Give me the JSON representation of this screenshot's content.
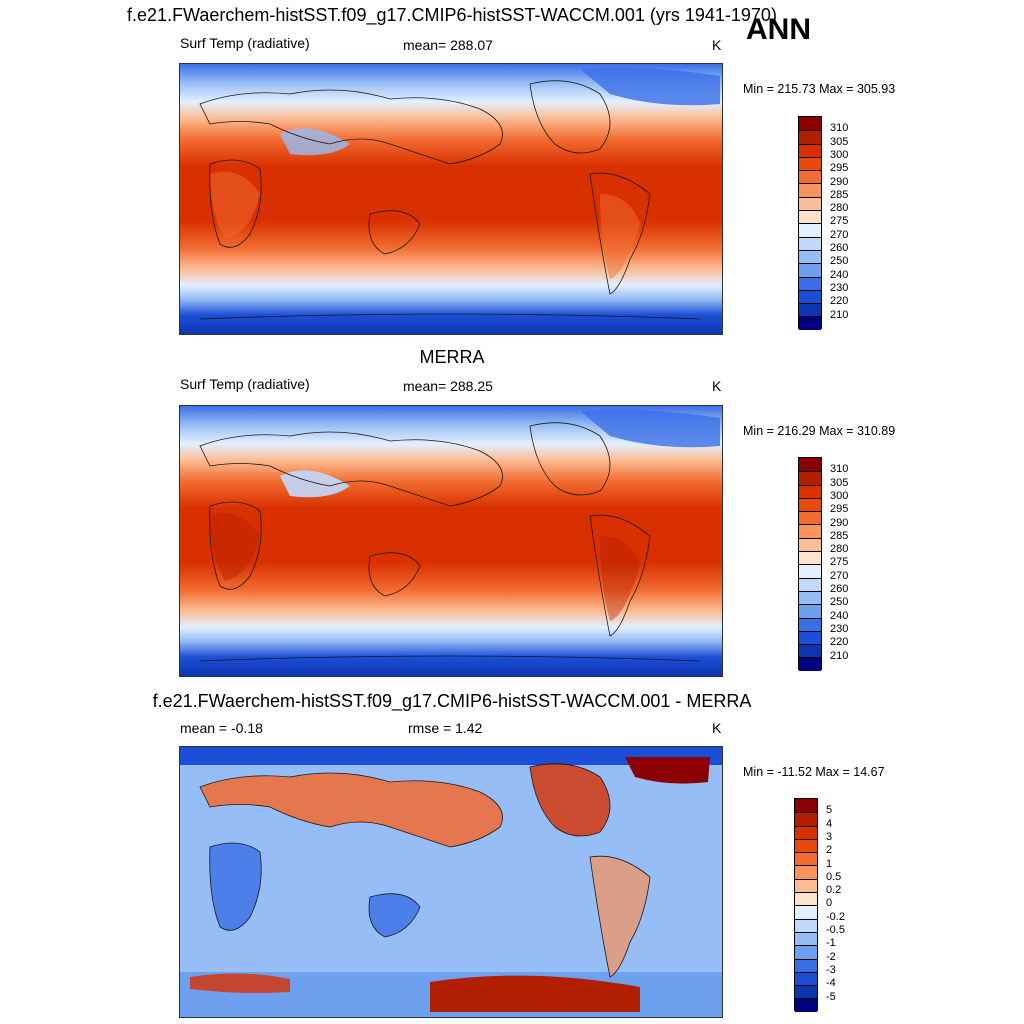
{
  "season": "ANN",
  "panels": [
    {
      "title": "f.e21.FWaerchem-histSST.f09_g17.CMIP6-histSST-WACCM.001 (yrs 1941-1970)",
      "left_label": "Surf Temp (radiative)",
      "center_label": "mean= 288.07",
      "units": "K",
      "minmax": "Min = 215.73 Max = 305.93",
      "colorbar": {
        "labels": [
          "310",
          "305",
          "300",
          "295",
          "290",
          "285",
          "280",
          "275",
          "270",
          "260",
          "250",
          "240",
          "230",
          "220",
          "210"
        ],
        "colors": [
          "#8b0000",
          "#b11e00",
          "#d93000",
          "#e84a0e",
          "#f26b30",
          "#f8935b",
          "#fbbd95",
          "#fde2cc",
          "#e4efff",
          "#c1d9fb",
          "#96bdf5",
          "#6ea0f0",
          "#3b6fe8",
          "#1c4fd8",
          "#0c35b0",
          "#000080"
        ]
      },
      "stats": {
        "mean": 288.07,
        "min": 215.73,
        "max": 305.93
      }
    },
    {
      "title": "MERRA",
      "left_label": "Surf Temp (radiative)",
      "center_label": "mean= 288.25",
      "units": "K",
      "minmax": "Min = 216.29 Max = 310.89",
      "colorbar": {
        "labels": [
          "310",
          "305",
          "300",
          "295",
          "290",
          "285",
          "280",
          "275",
          "270",
          "260",
          "250",
          "240",
          "230",
          "220",
          "210"
        ],
        "colors": [
          "#8b0000",
          "#b11e00",
          "#d93000",
          "#e84a0e",
          "#f26b30",
          "#f8935b",
          "#fbbd95",
          "#fde2cc",
          "#e4efff",
          "#c1d9fb",
          "#96bdf5",
          "#6ea0f0",
          "#3b6fe8",
          "#1c4fd8",
          "#0c35b0",
          "#000080"
        ]
      },
      "stats": {
        "mean": 288.25,
        "min": 216.29,
        "max": 310.89
      }
    },
    {
      "title": "f.e21.FWaerchem-histSST.f09_g17.CMIP6-histSST-WACCM.001 - MERRA",
      "left_label": "mean =  -0.18",
      "center_label": "rmse =   1.42",
      "units": "K",
      "minmax": "Min = -11.52 Max =  14.67",
      "colorbar": {
        "labels": [
          "5",
          "4",
          "3",
          "2",
          "1",
          "0.5",
          "0.2",
          "0",
          "-0.2",
          "-0.5",
          "-1",
          "-2",
          "-3",
          "-4",
          "-5"
        ],
        "colors": [
          "#8b0000",
          "#b11e00",
          "#d93000",
          "#e84a0e",
          "#f26b30",
          "#f8935b",
          "#fbbd95",
          "#fde2cc",
          "#e4efff",
          "#c1d9fb",
          "#96bdf5",
          "#6ea0f0",
          "#3b6fe8",
          "#1c4fd8",
          "#0c35b0",
          "#000080"
        ]
      },
      "stats": {
        "mean": -0.18,
        "rmse": 1.42,
        "min": -11.52,
        "max": 14.67
      }
    }
  ]
}
